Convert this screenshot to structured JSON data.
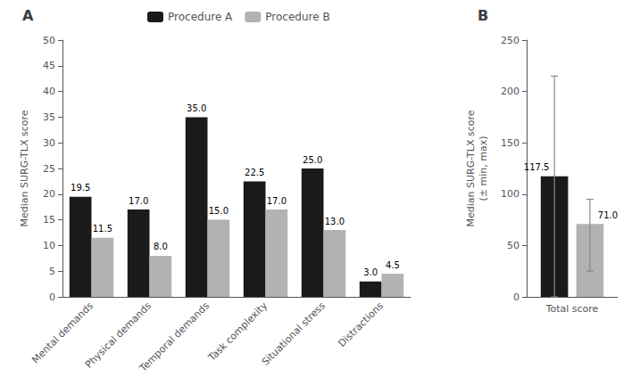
{
  "chart_data": [
    {
      "type": "bar",
      "title": "A",
      "categories": [
        "Mental demands",
        "Physical demands",
        "Temporal demands",
        "Task complexity",
        "Situational stress",
        "Distractions"
      ],
      "series": [
        {
          "name": "Procedure A",
          "color": "#1a1a1a",
          "values": [
            19.5,
            17.0,
            35.0,
            22.5,
            25.0,
            3.0
          ],
          "value_labels": [
            "19.5",
            "17.0",
            "35.0",
            "22.5",
            "25.0",
            "3.0"
          ]
        },
        {
          "name": "Procedure B",
          "color": "#b2b2b2",
          "values": [
            11.5,
            8.0,
            15.0,
            17.0,
            13.0,
            4.5
          ],
          "value_labels": [
            "11.5",
            "8.0",
            "15.0",
            "17.0",
            "13.0",
            "4.5"
          ]
        }
      ],
      "ylabel": "Median SURG-TLX score",
      "ylim": [
        0,
        50
      ],
      "yticks": [
        0,
        5,
        10,
        15,
        20,
        25,
        30,
        35,
        40,
        45,
        50
      ],
      "legend": "top",
      "grid": false,
      "data_labels": true
    },
    {
      "type": "bar",
      "title": "B",
      "categories": [
        "Total score"
      ],
      "series": [
        {
          "name": "Procedure A",
          "color": "#1a1a1a",
          "values": [
            117.5
          ],
          "value_labels": [
            "117.5"
          ],
          "min": [
            0
          ],
          "max": [
            215
          ]
        },
        {
          "name": "Procedure B",
          "color": "#b2b2b2",
          "values": [
            71.0
          ],
          "value_labels": [
            "71.0"
          ],
          "min": [
            25
          ],
          "max": [
            95
          ]
        }
      ],
      "ylabel": "Median SURG-TLX score\n(± min, max)",
      "ylim": [
        0,
        250
      ],
      "yticks": [
        0,
        50,
        100,
        150,
        200,
        250
      ],
      "grid": false,
      "data_labels": true
    }
  ]
}
